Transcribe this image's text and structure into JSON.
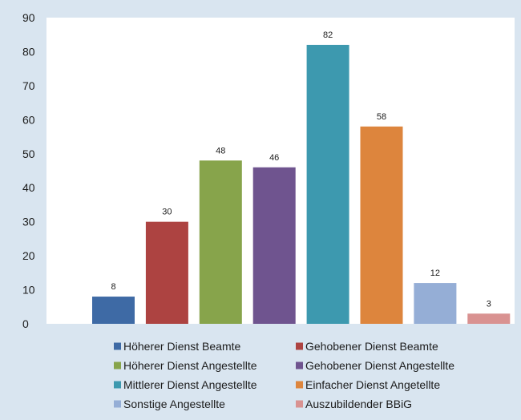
{
  "chart_data": {
    "type": "bar",
    "categories": [
      "Höherer Dienst Beamte",
      "Gehobener Dienst Beamte",
      "Höherer Dienst Angestellte",
      "Gehobener Dienst Angestellte",
      "Mittlerer Dienst Angestellte",
      "Einfacher Dienst Angetellte",
      "Sonstige Angestellte",
      "Auszubildender BBiG"
    ],
    "values": [
      8,
      30,
      48,
      46,
      82,
      58,
      12,
      3
    ],
    "colors": [
      "#3e6aa5",
      "#ad4341",
      "#87a44b",
      "#6f548f",
      "#3d99af",
      "#dd853d",
      "#95aed6",
      "#d99291"
    ],
    "ylim": [
      0,
      90
    ],
    "yticks": [
      0,
      10,
      20,
      30,
      40,
      50,
      60,
      70,
      80,
      90
    ],
    "grid": false,
    "legend_position": "bottom",
    "data_labels": true
  }
}
